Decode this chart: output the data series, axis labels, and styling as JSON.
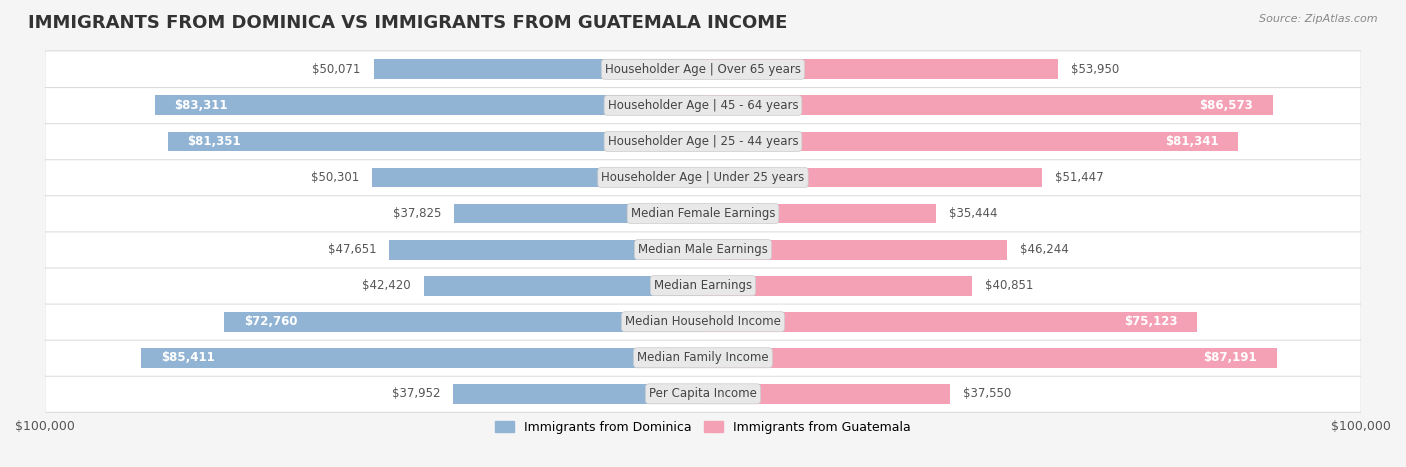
{
  "title": "IMMIGRANTS FROM DOMINICA VS IMMIGRANTS FROM GUATEMALA INCOME",
  "source": "Source: ZipAtlas.com",
  "categories": [
    "Per Capita Income",
    "Median Family Income",
    "Median Household Income",
    "Median Earnings",
    "Median Male Earnings",
    "Median Female Earnings",
    "Householder Age | Under 25 years",
    "Householder Age | 25 - 44 years",
    "Householder Age | 45 - 64 years",
    "Householder Age | Over 65 years"
  ],
  "dominica_values": [
    37952,
    85411,
    72760,
    42420,
    47651,
    37825,
    50301,
    81351,
    83311,
    50071
  ],
  "guatemala_values": [
    37550,
    87191,
    75123,
    40851,
    46244,
    35444,
    51447,
    81341,
    86573,
    53950
  ],
  "dominica_color": "#92b4d4",
  "guatemala_color": "#f4a0b5",
  "dominica_label": "Immigrants from Dominica",
  "guatemala_label": "Immigrants from Guatemala",
  "axis_max": 100000,
  "background_color": "#f5f5f5",
  "row_bg_color": "#ffffff",
  "label_box_color": "#e8e8e8",
  "title_fontsize": 13,
  "tick_fontsize": 9,
  "value_fontsize": 8.5,
  "category_fontsize": 8.5
}
